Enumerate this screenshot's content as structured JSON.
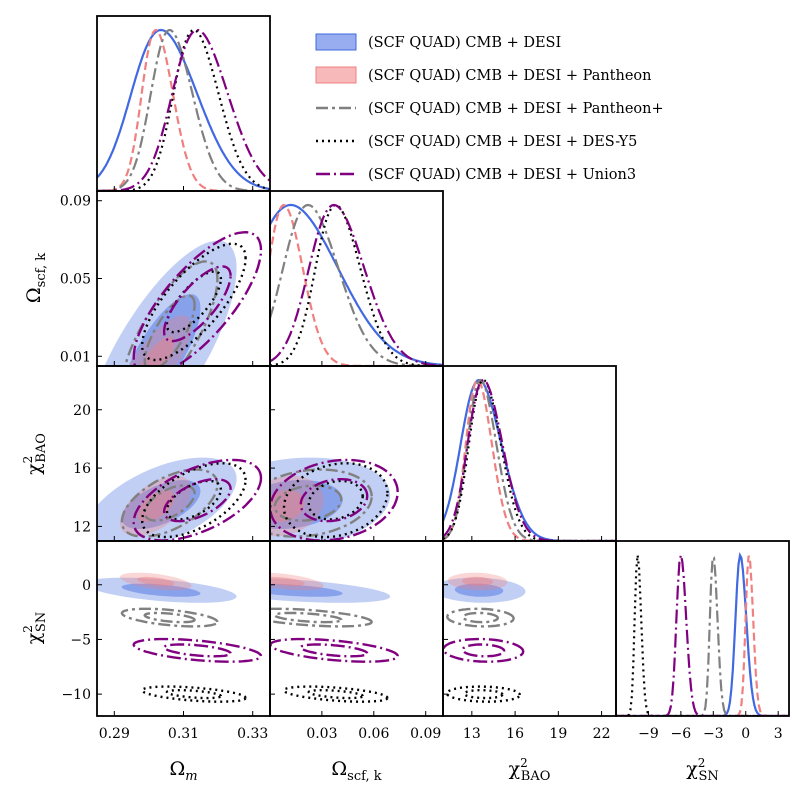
{
  "chart_data": {
    "type": "corner",
    "title": "",
    "parameters": [
      {
        "id": "om",
        "label": "Ωm",
        "range": [
          0.285,
          0.335
        ],
        "ticks": [
          0.29,
          0.31,
          0.33
        ],
        "tick_labels": [
          "0.29",
          "0.31",
          "0.33"
        ]
      },
      {
        "id": "ok",
        "label": "Ωscf,k",
        "range": [
          0.0,
          0.1
        ],
        "ticks": [
          0.03,
          0.06,
          0.09
        ],
        "tick_labels": [
          "0.03",
          "0.06",
          "0.09"
        ],
        "y_range": [
          0.005,
          0.095
        ],
        "y_ticks": [
          0.01,
          0.05,
          0.09
        ],
        "y_tick_labels": [
          "0.01",
          "0.05",
          "0.09"
        ]
      },
      {
        "id": "bao",
        "label": "χ²BAO",
        "range": [
          11,
          23
        ],
        "ticks": [
          13,
          16,
          19,
          22
        ],
        "tick_labels": [
          "13",
          "16",
          "19",
          "22"
        ],
        "y_ticks": [
          12,
          16,
          20
        ],
        "y_tick_labels": [
          "12",
          "16",
          "20"
        ]
      },
      {
        "id": "sn",
        "label": "χ²SN",
        "range": [
          -12,
          4
        ],
        "ticks": [
          -9,
          -6,
          -3,
          0,
          3
        ],
        "tick_labels": [
          "−9",
          "−6",
          "−3",
          "0",
          "3"
        ],
        "y_range": [
          -12,
          4
        ],
        "y_ticks": [
          -10,
          -5,
          0
        ],
        "y_tick_labels": [
          "−10",
          "−5",
          "0"
        ]
      }
    ],
    "axis_labels": {
      "om": {
        "base": "Ω",
        "sub": "m"
      },
      "ok": {
        "base": "Ω",
        "sub": "scf, k"
      },
      "bao": {
        "base": "χ",
        "sup": "2",
        "sub": "BAO"
      },
      "sn": {
        "base": "χ",
        "sup": "2",
        "sub": "SN"
      }
    },
    "legend_position": "top-right",
    "series": [
      {
        "name": "(SCF QUAD) CMB + DESI",
        "color": "#4169e1",
        "style": "filled",
        "mean": {
          "om": 0.3035,
          "ok": 0.012,
          "bao": 13.5,
          "sn": -0.5
        },
        "std": {
          "om": 0.0095,
          "ok": 0.025,
          "bao": 1.4,
          "sn": 0.5
        }
      },
      {
        "name": "(SCF QUAD) CMB + DESI + Pantheon",
        "color": "#f08080",
        "style": "filled",
        "mean": {
          "om": 0.302,
          "ok": 0.008,
          "bao": 13.4,
          "sn": 0.3
        },
        "std": {
          "om": 0.0045,
          "ok": 0.01,
          "bao": 0.9,
          "sn": 0.35
        }
      },
      {
        "name": "(SCF QUAD) CMB + DESI + Pantheon+",
        "color": "#808080",
        "style": "dashdot",
        "mean": {
          "om": 0.306,
          "ok": 0.022,
          "bao": 13.6,
          "sn": -3.0
        },
        "std": {
          "om": 0.006,
          "ok": 0.016,
          "bao": 1.0,
          "sn": 0.35
        }
      },
      {
        "name": "(SCF QUAD) CMB + DESI + DES-Y5",
        "color": "#000000",
        "style": "dotted",
        "mean": {
          "om": 0.313,
          "ok": 0.038,
          "bao": 13.8,
          "sn": -10.0
        },
        "std": {
          "om": 0.0065,
          "ok": 0.013,
          "bao": 1.1,
          "sn": 0.3
        }
      },
      {
        "name": "(SCF QUAD) CMB + DESI + Union3",
        "color": "#800080",
        "style": "longdashdot",
        "mean": {
          "om": 0.314,
          "ok": 0.037,
          "bao": 13.8,
          "sn": -6.0
        },
        "std": {
          "om": 0.008,
          "ok": 0.016,
          "bao": 1.2,
          "sn": 0.45
        }
      }
    ]
  }
}
